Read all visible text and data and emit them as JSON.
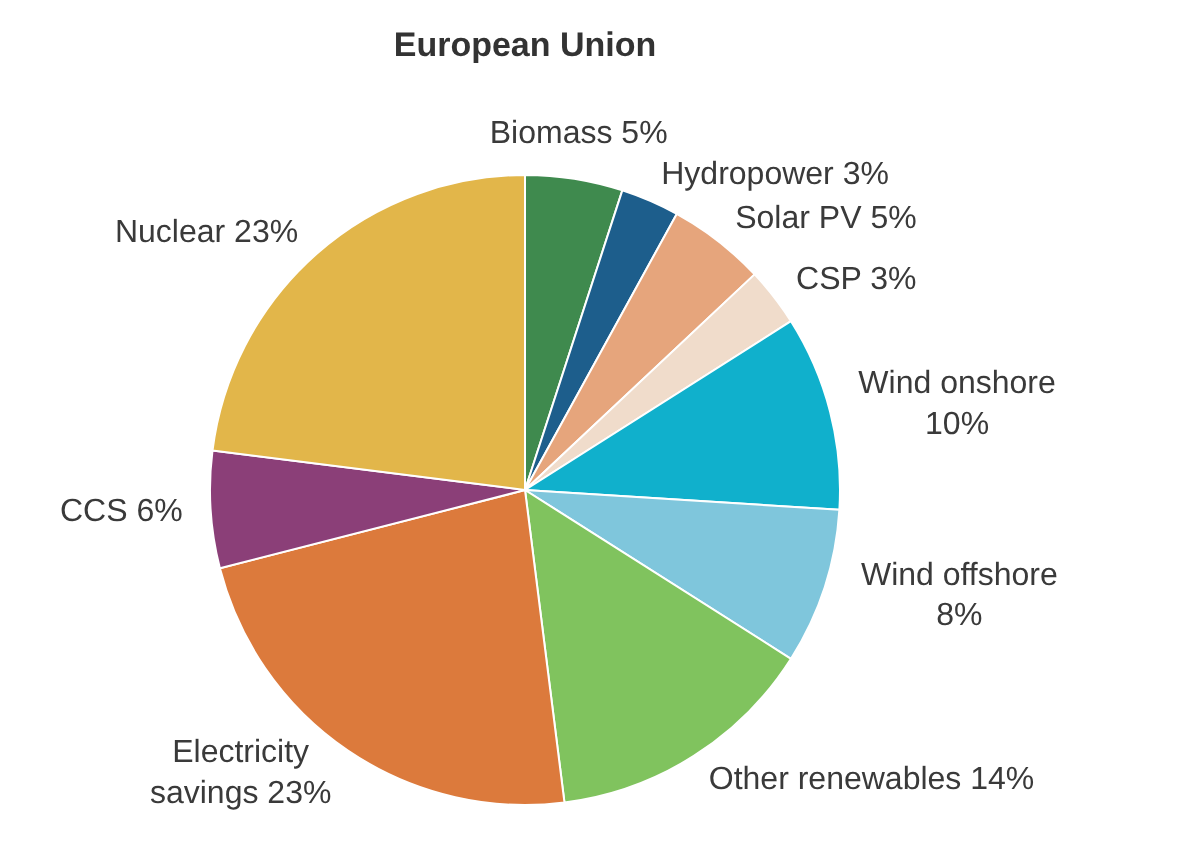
{
  "chart_data": {
    "type": "pie",
    "title": "European Union",
    "categories": [
      "Biomass",
      "Hydropower",
      "Solar PV",
      "CSP",
      "Wind onshore",
      "Wind offshore",
      "Other renewables",
      "Electricity savings",
      "CCS",
      "Nuclear"
    ],
    "values": [
      5,
      3,
      5,
      3,
      10,
      8,
      14,
      23,
      6,
      23
    ],
    "value_labels": [
      "5%",
      "3%",
      "5%",
      "3%",
      "10%",
      "8%",
      "14%",
      "23%",
      "6%",
      "23%"
    ],
    "colors": [
      "#3f8a4e",
      "#1d5e8c",
      "#e6a57c",
      "#f0dccb",
      "#10b0cc",
      "#7fc6dc",
      "#80c35e",
      "#dc7a3c",
      "#8b3f78",
      "#e2b64a"
    ]
  }
}
